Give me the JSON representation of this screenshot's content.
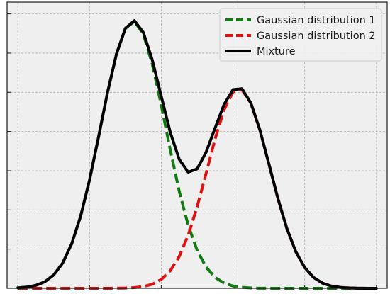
{
  "chart_data": {
    "type": "line",
    "title": "",
    "xlabel": "",
    "ylabel": "",
    "x": [
      0,
      0.25,
      0.5,
      0.75,
      1,
      1.25,
      1.5,
      1.75,
      2,
      2.25,
      2.5,
      2.75,
      3,
      3.25,
      3.5,
      3.75,
      4,
      4.25,
      4.5,
      4.75,
      5,
      5.25,
      5.5,
      5.75,
      6,
      6.25,
      6.5,
      6.75,
      7,
      7.25,
      7.5,
      7.75,
      8,
      8.25,
      8.5,
      8.75,
      9,
      9.25,
      9.5,
      9.75,
      10
    ],
    "series": [
      {
        "name": "Gaussian distribution 1",
        "color": "#117a11",
        "style": "dashed",
        "values": [
          0.0012,
          0.0031,
          0.0075,
          0.0166,
          0.0341,
          0.0645,
          0.1131,
          0.1837,
          0.2766,
          0.3859,
          0.499,
          0.5977,
          0.663,
          0.681,
          0.6482,
          0.5717,
          0.467,
          0.3535,
          0.2478,
          0.161,
          0.0969,
          0.054,
          0.0279,
          0.0134,
          0.0059,
          0.0024,
          0.0009,
          0.0003,
          0.0001,
          0.0,
          0.0,
          0.0,
          0.0,
          0.0,
          0.0,
          0.0,
          0.0,
          0.0,
          0.0,
          0.0,
          0.0
        ]
      },
      {
        "name": "Gaussian distribution 2",
        "color": "#dd1111",
        "style": "dashed",
        "values": [
          0.0,
          0.0,
          0.0,
          0.0,
          0.0,
          0.0,
          0.0,
          0.0,
          0.0,
          0.0,
          0.0001,
          0.0002,
          0.0006,
          0.0018,
          0.0045,
          0.0105,
          0.0227,
          0.0447,
          0.0812,
          0.1353,
          0.2077,
          0.2932,
          0.3809,
          0.4554,
          0.5009,
          0.5068,
          0.4717,
          0.4037,
          0.3178,
          0.2301,
          0.1532,
          0.0938,
          0.0529,
          0.0274,
          0.0131,
          0.0057,
          0.0023,
          0.0009,
          0.0003,
          0.0001,
          0.0
        ]
      },
      {
        "name": "Mixture",
        "color": "#000000",
        "style": "solid",
        "values": [
          0.0012,
          0.0031,
          0.0075,
          0.0166,
          0.0341,
          0.0645,
          0.1131,
          0.1837,
          0.2766,
          0.3859,
          0.4991,
          0.5979,
          0.6636,
          0.6828,
          0.6527,
          0.5822,
          0.4897,
          0.3982,
          0.329,
          0.2963,
          0.3046,
          0.3472,
          0.4088,
          0.4688,
          0.5068,
          0.5092,
          0.4726,
          0.404,
          0.3179,
          0.2301,
          0.1532,
          0.0938,
          0.0529,
          0.0274,
          0.0131,
          0.0057,
          0.0023,
          0.0009,
          0.0003,
          0.0001,
          0.0
        ]
      }
    ],
    "xlim": [
      -0.3,
      10.3
    ],
    "ylim": [
      0,
      0.73
    ],
    "x_ticks": [
      0,
      2,
      4,
      6,
      8,
      10
    ],
    "y_ticks": [
      0.1,
      0.2,
      0.3,
      0.4,
      0.5,
      0.6,
      0.7
    ],
    "grid": true,
    "grid_style": "dashed",
    "tick_labels_visible": false,
    "legend": {
      "placement": "top-right",
      "entries": [
        "Gaussian distribution 1",
        "Gaussian distribution 2",
        "Mixture"
      ]
    },
    "colors": {
      "background": "#efefef",
      "grid": "#b0b0b0",
      "axis": "#1a1a1a",
      "legend_bg": "#efefef"
    }
  }
}
